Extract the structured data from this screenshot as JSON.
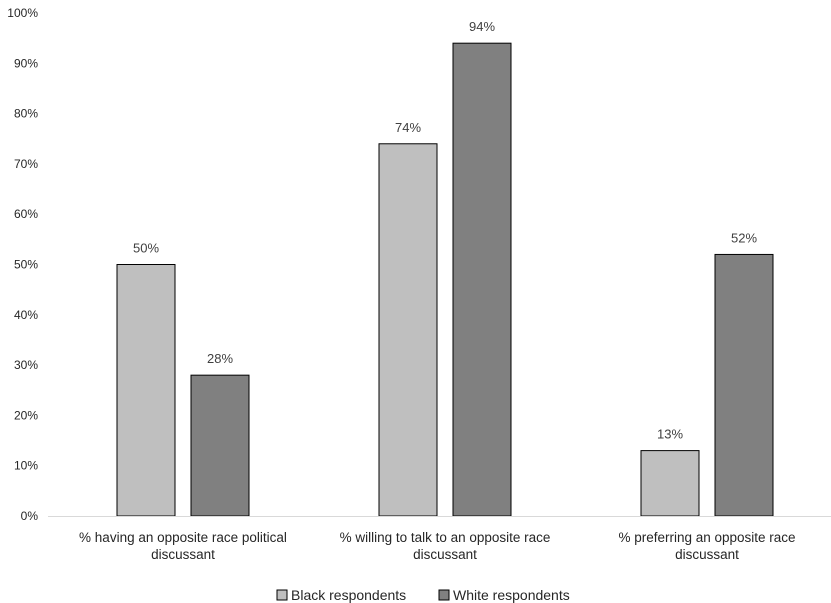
{
  "chart_data": {
    "type": "bar",
    "categories": [
      [
        "% having an opposite race political",
        "discussant"
      ],
      [
        "% willing to talk to an opposite race",
        "discussant"
      ],
      [
        "% preferring an opposite race",
        "discussant"
      ]
    ],
    "series": [
      {
        "name": "Black respondents",
        "values": [
          50,
          74,
          13
        ],
        "labels": [
          "50%",
          "74%",
          "13%"
        ],
        "color": "#bfbfbf"
      },
      {
        "name": "White respondents",
        "values": [
          28,
          94,
          52
        ],
        "labels": [
          "28%",
          "94%",
          "52%"
        ],
        "color": "#808080"
      }
    ],
    "y_ticks": [
      "0%",
      "10%",
      "20%",
      "30%",
      "40%",
      "50%",
      "60%",
      "70%",
      "80%",
      "90%",
      "100%"
    ],
    "ylim": [
      0,
      100
    ],
    "gridlines": false,
    "legend_position": "bottom"
  }
}
